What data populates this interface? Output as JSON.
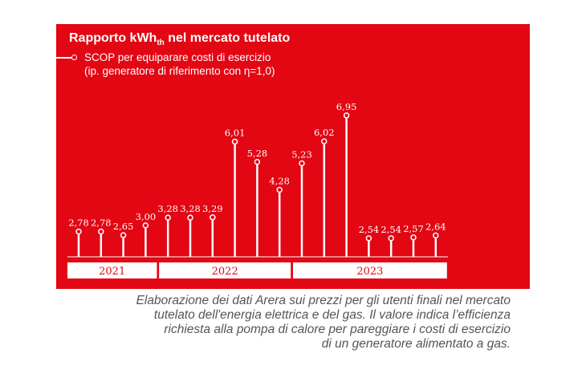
{
  "colors": {
    "background": "#e30613",
    "marks": "#ffffff",
    "caption": "#555555"
  },
  "chart_data": {
    "type": "lollipop",
    "title": {
      "main": "Rapporto kWh",
      "subscript": "th",
      "rest": " nel mercato tutelato"
    },
    "legend": {
      "lines": [
        "SCOP per equiparare costi di esercizio",
        "(ip. generatore di riferimento con η=1,0)"
      ],
      "placement": "top-left"
    },
    "values": [
      2.78,
      2.78,
      2.65,
      3.0,
      3.28,
      3.28,
      3.29,
      6.01,
      5.28,
      4.28,
      5.23,
      6.02,
      6.95,
      2.54,
      2.54,
      2.57,
      2.64
    ],
    "labels": [
      "2,78",
      "2,78",
      "2,65",
      "3,00",
      "3,28",
      "3,28",
      "3,29",
      "6,01",
      "5,28",
      "4,28",
      "5,23",
      "6,02",
      "6,95",
      "2,54",
      "2,54",
      "2,57",
      "2,64"
    ],
    "year_groups": [
      {
        "label": "2021",
        "count": 4
      },
      {
        "label": "2022",
        "count": 6
      },
      {
        "label": "2023",
        "count": 7
      }
    ],
    "grid": false
  },
  "caption": [
    "Elaborazione dei dati Arera sui prezzi per gli utenti finali nel mercato",
    "tutelato dell'energia elettrica e del gas. Il valore indica l’efficienza",
    "richiesta alla pompa di calore per pareggiare i costi di esercizio",
    "di un generatore alimentato a gas."
  ]
}
